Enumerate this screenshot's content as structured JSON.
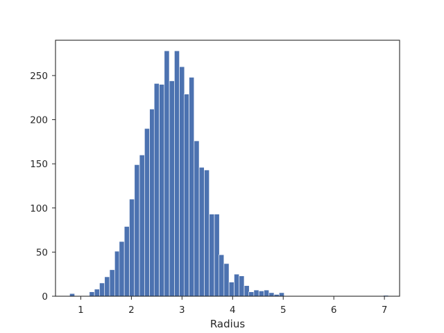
{
  "chart_data": {
    "type": "bar",
    "title": "",
    "xlabel": "Radius",
    "ylabel": "",
    "xlim": [
      0.5,
      7.3
    ],
    "ylim": [
      0,
      290
    ],
    "grid": false,
    "bar_color": "#4c72b0",
    "bin_width": 0.0984,
    "x_ticks": [
      1,
      2,
      3,
      4,
      5,
      6,
      7
    ],
    "x_tick_labels": [
      "1",
      "2",
      "3",
      "4",
      "5",
      "6",
      "7"
    ],
    "y_ticks": [
      0,
      50,
      100,
      150,
      200,
      250
    ],
    "y_tick_labels": [
      "0",
      "50",
      "100",
      "150",
      "200",
      "250"
    ],
    "bins_left": [
      0.78,
      0.88,
      0.98,
      1.08,
      1.17,
      1.27,
      1.37,
      1.47,
      1.57,
      1.67,
      1.76,
      1.86,
      1.96,
      2.06,
      2.16,
      2.26,
      2.36,
      2.45,
      2.55,
      2.65,
      2.75,
      2.85,
      2.95,
      3.04,
      3.14,
      3.24,
      3.34,
      3.44,
      3.54,
      3.64,
      3.73,
      3.83,
      3.93,
      4.03,
      4.13,
      4.23,
      4.32,
      4.42,
      4.52,
      4.62,
      4.72,
      4.82,
      4.92,
      5.01,
      5.11,
      5.21,
      5.31,
      5.41,
      5.51,
      5.61,
      5.7,
      5.8,
      5.9,
      6.0,
      6.1,
      6.2,
      6.29,
      6.39,
      6.49,
      6.59,
      6.69,
      6.79,
      6.88,
      6.98
    ],
    "values": [
      3,
      0,
      0,
      0,
      5,
      8,
      15,
      22,
      30,
      51,
      62,
      79,
      110,
      149,
      160,
      190,
      212,
      241,
      240,
      278,
      244,
      278,
      260,
      229,
      248,
      176,
      146,
      143,
      93,
      93,
      47,
      37,
      16,
      25,
      23,
      12,
      5,
      7,
      6,
      7,
      4,
      2,
      4,
      0,
      0,
      0,
      0,
      0,
      0,
      0,
      0,
      0,
      0,
      0,
      0,
      0,
      0,
      0,
      0,
      0,
      0,
      0,
      0,
      1
    ]
  }
}
